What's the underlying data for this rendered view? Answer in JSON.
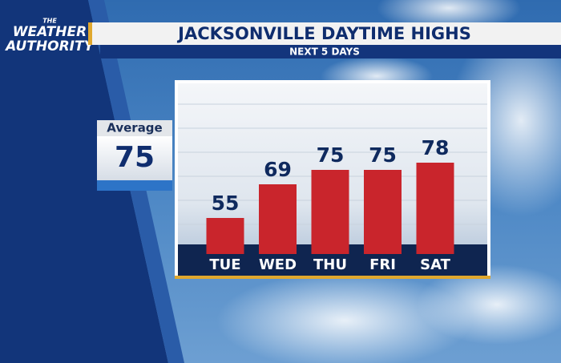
{
  "logo": {
    "small": "THE",
    "line1": "WEATHER",
    "line2": "AUTHORITY"
  },
  "average": {
    "label": "Average",
    "value": 75
  },
  "chart_data": {
    "type": "bar",
    "title": "JACKSONVILLE DAYTIME HIGHS",
    "subtitle": "NEXT 5 DAYS",
    "categories": [
      "TUE",
      "WED",
      "THU",
      "FRI",
      "SAT"
    ],
    "values": [
      55,
      69,
      75,
      75,
      78
    ],
    "color": "#c9252c",
    "ylim": [
      40,
      110
    ]
  }
}
